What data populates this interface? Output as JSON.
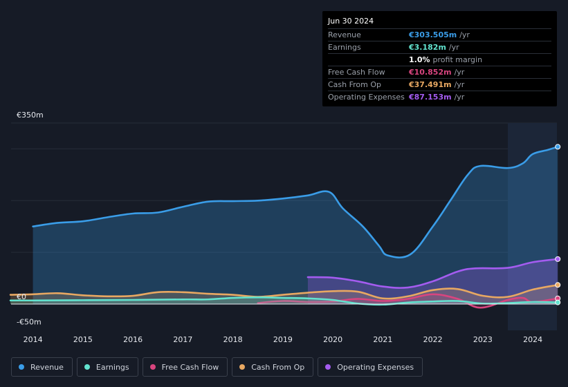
{
  "tooltip": {
    "date": "Jun 30 2024",
    "rows": [
      {
        "label": "Revenue",
        "value": "€303.505m",
        "unit": "/yr",
        "color": "#3a9de8"
      },
      {
        "label": "Earnings",
        "value": "€3.182m",
        "unit": "/yr",
        "color": "#62e3cf"
      },
      {
        "label": "",
        "value": "1.0%",
        "unit": "profit margin",
        "color": "#ffffff"
      },
      {
        "label": "Free Cash Flow",
        "value": "€10.852m",
        "unit": "/yr",
        "color": "#d8457f"
      },
      {
        "label": "Cash From Op",
        "value": "€37.491m",
        "unit": "/yr",
        "color": "#e8a862"
      },
      {
        "label": "Operating Expenses",
        "value": "€87.153m",
        "unit": "/yr",
        "color": "#a45cf0"
      }
    ]
  },
  "legend": [
    {
      "label": "Revenue",
      "color": "#3a9de8"
    },
    {
      "label": "Earnings",
      "color": "#62e3cf"
    },
    {
      "label": "Free Cash Flow",
      "color": "#d8457f"
    },
    {
      "label": "Cash From Op",
      "color": "#e8a862"
    },
    {
      "label": "Operating Expenses",
      "color": "#a45cf0"
    }
  ],
  "chart_data": {
    "type": "area",
    "y_unit": "€m",
    "ylim": [
      -50,
      350
    ],
    "y_tick_labels": [
      {
        "value": 350,
        "label": "€350m"
      },
      {
        "value": 0,
        "label": "€0"
      },
      {
        "value": -50,
        "label": "-€50m"
      }
    ],
    "x_tick_labels": [
      "2014",
      "2015",
      "2016",
      "2017",
      "2018",
      "2019",
      "2020",
      "2021",
      "2022",
      "2023",
      "2024"
    ],
    "xlim": [
      2013.55,
      2024.5
    ],
    "highlight_from": 2023.5,
    "series": [
      {
        "name": "Revenue",
        "color": "#3a9de8",
        "points": [
          [
            2014,
            150
          ],
          [
            2014.5,
            157
          ],
          [
            2015,
            160
          ],
          [
            2015.5,
            168
          ],
          [
            2016,
            175
          ],
          [
            2016.5,
            177
          ],
          [
            2017,
            188
          ],
          [
            2017.5,
            198
          ],
          [
            2018,
            199
          ],
          [
            2018.5,
            200
          ],
          [
            2019,
            204
          ],
          [
            2019.5,
            210
          ],
          [
            2019.92,
            217
          ],
          [
            2020.2,
            185
          ],
          [
            2020.6,
            150
          ],
          [
            2020.92,
            113
          ],
          [
            2021.1,
            94
          ],
          [
            2021.55,
            96
          ],
          [
            2022,
            150
          ],
          [
            2022.35,
            200
          ],
          [
            2022.7,
            250
          ],
          [
            2022.95,
            267
          ],
          [
            2023.5,
            263
          ],
          [
            2023.8,
            272
          ],
          [
            2024,
            290
          ],
          [
            2024.3,
            298
          ],
          [
            2024.5,
            304
          ]
        ]
      },
      {
        "name": "Operating Expenses",
        "color": "#a45cf0",
        "points": [
          [
            2019.5,
            52
          ],
          [
            2020,
            51
          ],
          [
            2020.5,
            44
          ],
          [
            2021,
            34
          ],
          [
            2021.5,
            32
          ],
          [
            2022,
            44
          ],
          [
            2022.5,
            63
          ],
          [
            2022.85,
            69
          ],
          [
            2023.5,
            70
          ],
          [
            2024,
            81
          ],
          [
            2024.5,
            87
          ]
        ]
      },
      {
        "name": "Cash From Op",
        "color": "#e8a862",
        "points": [
          [
            2013.55,
            18
          ],
          [
            2014,
            19
          ],
          [
            2014.5,
            21
          ],
          [
            2015,
            17
          ],
          [
            2015.5,
            15
          ],
          [
            2016,
            16
          ],
          [
            2016.5,
            23
          ],
          [
            2017,
            23
          ],
          [
            2017.5,
            20
          ],
          [
            2018,
            18
          ],
          [
            2018.5,
            14
          ],
          [
            2019,
            18
          ],
          [
            2019.5,
            22
          ],
          [
            2020,
            25
          ],
          [
            2020.5,
            24
          ],
          [
            2021,
            11
          ],
          [
            2021.5,
            15
          ],
          [
            2022,
            27
          ],
          [
            2022.5,
            29
          ],
          [
            2023,
            16
          ],
          [
            2023.5,
            14
          ],
          [
            2024,
            28
          ],
          [
            2024.5,
            37
          ]
        ]
      },
      {
        "name": "Free Cash Flow",
        "color": "#d8457f",
        "points": [
          [
            2018.5,
            2
          ],
          [
            2019,
            6
          ],
          [
            2019.5,
            4
          ],
          [
            2020,
            5
          ],
          [
            2020.5,
            10
          ],
          [
            2021,
            6
          ],
          [
            2021.5,
            10
          ],
          [
            2022,
            19
          ],
          [
            2022.5,
            10
          ],
          [
            2022.95,
            -7
          ],
          [
            2023.5,
            8
          ],
          [
            2023.8,
            12
          ],
          [
            2024,
            4
          ],
          [
            2024.5,
            11
          ]
        ]
      },
      {
        "name": "Earnings",
        "color": "#62e3cf",
        "points": [
          [
            2013.55,
            7
          ],
          [
            2014,
            7
          ],
          [
            2015,
            7.5
          ],
          [
            2016,
            8
          ],
          [
            2017,
            9
          ],
          [
            2017.5,
            9
          ],
          [
            2018,
            12
          ],
          [
            2018.5,
            13
          ],
          [
            2019,
            12
          ],
          [
            2019.5,
            11
          ],
          [
            2020,
            8
          ],
          [
            2020.5,
            1
          ],
          [
            2021,
            -1
          ],
          [
            2021.5,
            3
          ],
          [
            2022,
            5
          ],
          [
            2022.5,
            6
          ],
          [
            2023,
            1
          ],
          [
            2023.5,
            2
          ],
          [
            2024,
            4
          ],
          [
            2024.5,
            3.2
          ]
        ]
      }
    ]
  }
}
